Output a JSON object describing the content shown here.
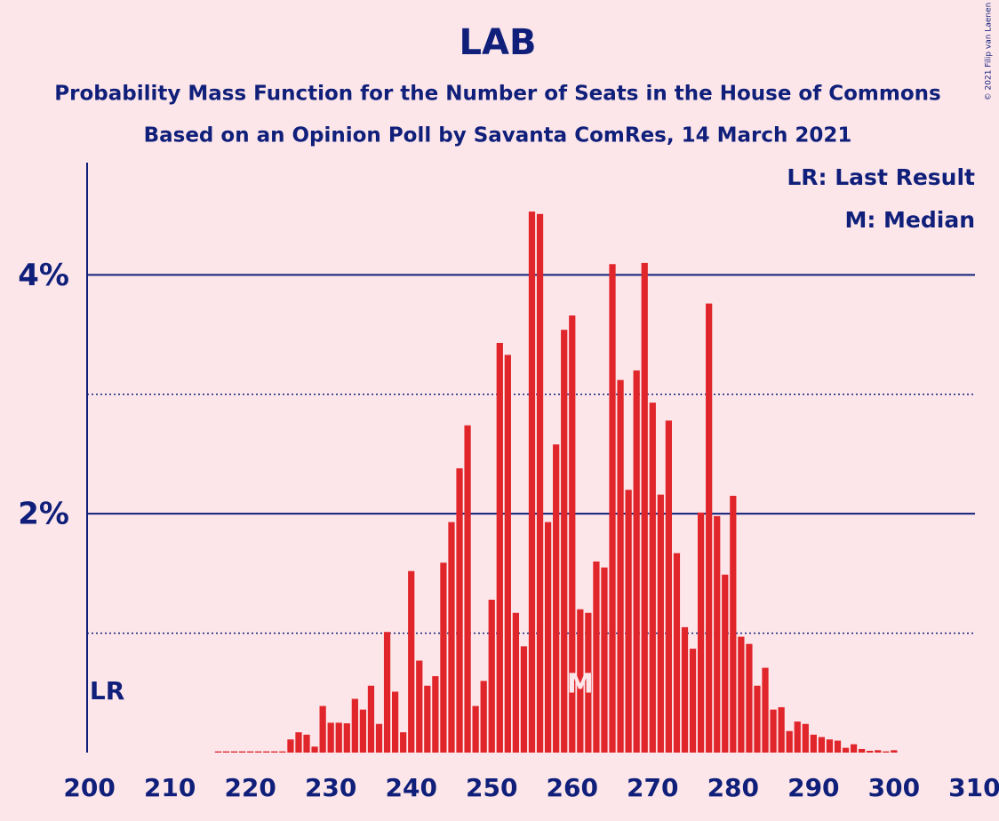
{
  "chart_data": {
    "type": "bar",
    "title": "LAB",
    "subtitle": "Probability Mass Function for the Number of Seats in the House of Commons",
    "subtitle2": "Based on an Opinion Poll by Savanta ComRes, 14 March 2021",
    "copyright": "© 2021 Filip van Laenen",
    "legend": [
      "LR: Last Result",
      "M: Median"
    ],
    "last_result": {
      "x": 200,
      "label": "LR"
    },
    "median": {
      "x": 261,
      "label": "M"
    },
    "color": "#e0262a",
    "x": [
      200,
      201,
      202,
      203,
      204,
      205,
      206,
      207,
      208,
      209,
      210,
      211,
      212,
      213,
      214,
      215,
      216,
      217,
      218,
      219,
      220,
      221,
      222,
      223,
      224,
      225,
      226,
      227,
      228,
      229,
      230,
      231,
      232,
      233,
      234,
      235,
      236,
      237,
      238,
      239,
      240,
      241,
      242,
      243,
      244,
      245,
      246,
      247,
      248,
      249,
      250,
      251,
      252,
      253,
      254,
      255,
      256,
      257,
      258,
      259,
      260,
      261,
      262,
      263,
      264,
      265,
      266,
      267,
      268,
      269,
      270,
      271,
      272,
      273,
      274,
      275,
      276,
      277,
      278,
      279,
      280,
      281,
      282,
      283,
      284,
      285,
      286,
      287,
      288,
      289,
      290,
      291,
      292,
      293,
      294,
      295,
      296,
      297,
      298,
      299,
      300,
      301,
      302,
      303,
      304,
      305,
      306,
      307,
      308,
      309,
      310
    ],
    "values": [
      0,
      0,
      0,
      0,
      0,
      0,
      0,
      0,
      0,
      0,
      0,
      0,
      0,
      0,
      0,
      0,
      0.01,
      0.01,
      0.01,
      0.01,
      0.01,
      0.01,
      0.01,
      0.01,
      0.01,
      0.11,
      0.17,
      0.15,
      0.05,
      0.39,
      0.25,
      0.25,
      0.245,
      0.45,
      0.36,
      0.56,
      0.24,
      1.01,
      0.51,
      0.17,
      1.52,
      0.77,
      0.56,
      0.64,
      1.59,
      1.93,
      2.38,
      2.74,
      0.39,
      0.6,
      1.28,
      3.43,
      3.33,
      1.17,
      0.89,
      4.53,
      4.51,
      1.93,
      2.58,
      3.54,
      3.66,
      1.2,
      1.17,
      1.6,
      1.55,
      4.09,
      3.12,
      2.2,
      3.2,
      4.1,
      2.93,
      2.16,
      2.78,
      1.67,
      1.05,
      0.87,
      2.01,
      3.76,
      1.98,
      1.49,
      2.15,
      0.97,
      0.91,
      0.56,
      0.71,
      0.36,
      0.38,
      0.18,
      0.26,
      0.24,
      0.15,
      0.13,
      0.11,
      0.1,
      0.04,
      0.07,
      0.03,
      0.015,
      0.02,
      0.01,
      0.02,
      0,
      0,
      0,
      0,
      0,
      0,
      0,
      0,
      0,
      0
    ],
    "xlim": [
      199.6,
      310.4
    ],
    "xticks": [
      200,
      210,
      220,
      230,
      240,
      250,
      260,
      270,
      280,
      290,
      300,
      310
    ],
    "ylim": [
      0,
      4.94
    ],
    "yticks": [
      {
        "value": 2,
        "label": "2%"
      },
      {
        "value": 4,
        "label": "4%"
      }
    ],
    "minor_yticks": [
      1,
      3
    ],
    "grid": true
  }
}
